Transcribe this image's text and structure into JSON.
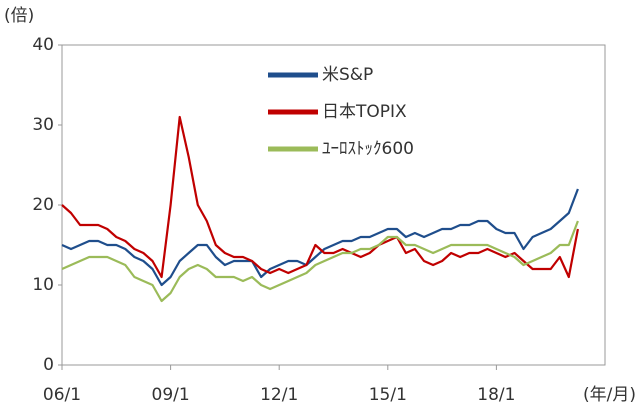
{
  "chart_data": {
    "type": "line",
    "y_unit_label": "(倍)",
    "x_unit_label": "(年/月)",
    "x": [
      2006,
      2006.25,
      2006.5,
      2006.75,
      2007,
      2007.25,
      2007.5,
      2007.75,
      2008,
      2008.25,
      2008.5,
      2008.75,
      2009,
      2009.25,
      2009.5,
      2009.75,
      2010,
      2010.25,
      2010.5,
      2010.75,
      2011,
      2011.25,
      2011.5,
      2011.75,
      2012,
      2012.25,
      2012.5,
      2012.75,
      2013,
      2013.25,
      2013.5,
      2013.75,
      2014,
      2014.25,
      2014.5,
      2014.75,
      2015,
      2015.25,
      2015.5,
      2015.75,
      2016,
      2016.25,
      2016.5,
      2016.75,
      2017,
      2017.25,
      2017.5,
      2017.75,
      2018,
      2018.25,
      2018.5,
      2018.75,
      2019,
      2019.25,
      2019.5,
      2019.75,
      2020,
      2020.25
    ],
    "series": [
      {
        "name": "米S&P",
        "color": "#1f4e8c",
        "values": [
          15,
          14.5,
          15,
          15.5,
          15.5,
          15,
          15,
          14.5,
          13.5,
          13,
          12,
          10,
          11,
          13,
          14,
          15,
          15,
          13.5,
          12.5,
          13,
          13,
          13,
          11,
          12,
          12.5,
          13,
          13,
          12.5,
          13.5,
          14.5,
          15,
          15.5,
          15.5,
          16,
          16,
          16.5,
          17,
          17,
          16,
          16.5,
          16,
          16.5,
          17,
          17,
          17.5,
          17.5,
          18,
          18,
          17,
          16.5,
          16.5,
          14.5,
          16,
          16.5,
          17,
          18,
          19,
          22
        ]
      },
      {
        "name": "日本TOPIX",
        "color": "#c00000",
        "values": [
          20,
          19,
          17.5,
          17.5,
          17.5,
          17,
          16,
          15.5,
          14.5,
          14,
          13,
          11,
          20,
          31,
          26,
          20,
          18,
          15,
          14,
          13.5,
          13.5,
          13,
          12,
          11.5,
          12,
          11.5,
          12,
          12.5,
          15,
          14,
          14,
          14.5,
          14,
          13.5,
          14,
          15,
          15.5,
          16,
          14,
          14.5,
          13,
          12.5,
          13,
          14,
          13.5,
          14,
          14,
          14.5,
          14,
          13.5,
          14,
          13,
          12,
          12,
          12,
          13.5,
          11,
          17
        ]
      },
      {
        "name": "ﾕｰﾛｽﾄｯｸ600",
        "color": "#9bbb59",
        "values": [
          12,
          12.5,
          13,
          13.5,
          13.5,
          13.5,
          13,
          12.5,
          11,
          10.5,
          10,
          8,
          9,
          11,
          12,
          12.5,
          12,
          11,
          11,
          11,
          10.5,
          11,
          10,
          9.5,
          10,
          10.5,
          11,
          11.5,
          12.5,
          13,
          13.5,
          14,
          14,
          14.5,
          14.5,
          15,
          16,
          16,
          15,
          15,
          14.5,
          14,
          14.5,
          15,
          15,
          15,
          15,
          15,
          14.5,
          14,
          13.5,
          12.5,
          13,
          13.5,
          14,
          15,
          15,
          18
        ]
      }
    ],
    "xlim": [
      2006,
      2021
    ],
    "xticks": [
      {
        "value": 2006,
        "label": "06/1"
      },
      {
        "value": 2009,
        "label": "09/1"
      },
      {
        "value": 2012,
        "label": "12/1"
      },
      {
        "value": 2015,
        "label": "15/1"
      },
      {
        "value": 2018,
        "label": "18/1"
      }
    ],
    "ylim": [
      0,
      40
    ],
    "yticks": [
      0,
      10,
      20,
      30,
      40
    ]
  }
}
